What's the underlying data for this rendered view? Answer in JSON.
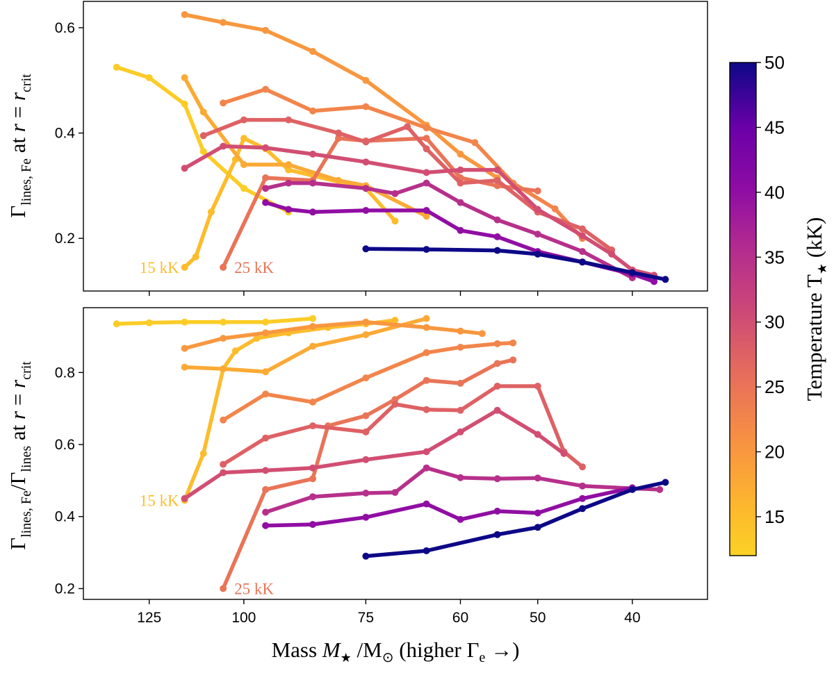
{
  "figure": {
    "x_axis_label_prefix": "Mass ",
    "x_axis_label_var": "M",
    "x_axis_label_star": "★",
    "x_axis_label_div": " /M",
    "x_axis_label_sun": "⊙",
    "x_axis_label_suffix": "  (higher Γ",
    "x_axis_label_sub": "e",
    "x_axis_label_arrow": " →)",
    "colorbar_label": "Temperature T",
    "colorbar_label_sub": "★",
    "colorbar_label_unit": " (kK)",
    "colorbar_ticks": [
      15,
      20,
      25,
      30,
      35,
      40,
      45,
      50
    ],
    "colorbar_range": [
      12,
      50
    ],
    "colorbar_label_full": "Temperature T★ (kK)"
  },
  "chart_data": [
    {
      "type": "line",
      "name": "top-panel",
      "ylabel": "Γlines, Fe at r = rcrit",
      "ylabel_main": "Γ",
      "ylabel_sub": "lines, Fe",
      "ylabel_mid": " at ",
      "ylabel_r": "r",
      "ylabel_eq": " = ",
      "ylabel_r2": "r",
      "ylabel_sub2": "crit",
      "xlim": [
        146,
        33.5
      ],
      "ylim": [
        0.1,
        0.65
      ],
      "x_ticks": [
        125,
        100,
        75,
        60,
        50,
        40
      ],
      "y_ticks": [
        0.2,
        0.4,
        0.6
      ],
      "series": [
        {
          "name": "T12.8",
          "temperature": 12.8,
          "x": [
            135,
            125,
            115,
            110,
            100,
            90
          ],
          "y": [
            0.525,
            0.505,
            0.455,
            0.365,
            0.295,
            0.25
          ]
        },
        {
          "name": "T15",
          "temperature": 15,
          "x": [
            115,
            112,
            108,
            102,
            100,
            95,
            90,
            75,
            70
          ],
          "y": [
            0.145,
            0.165,
            0.25,
            0.35,
            0.39,
            0.37,
            0.33,
            0.295,
            0.233
          ]
        },
        {
          "name": "T17.5",
          "temperature": 17.5,
          "x": [
            115,
            110,
            100,
            90,
            80,
            75,
            65
          ],
          "y": [
            0.505,
            0.44,
            0.34,
            0.34,
            0.31,
            0.3,
            0.242
          ]
        },
        {
          "name": "T20",
          "temperature": 20,
          "x": [
            115,
            105,
            95,
            85,
            75,
            65,
            60,
            55
          ],
          "y": [
            0.625,
            0.61,
            0.595,
            0.555,
            0.5,
            0.415,
            0.36,
            0.315
          ]
        },
        {
          "name": "T22.5",
          "temperature": 22.5,
          "x": [
            105,
            95,
            85,
            75,
            65,
            58,
            53,
            48,
            45
          ],
          "y": [
            0.457,
            0.483,
            0.442,
            0.45,
            0.41,
            0.382,
            0.305,
            0.256,
            0.2
          ]
        },
        {
          "name": "T25",
          "temperature": 25,
          "x": [
            105,
            95,
            85,
            80,
            75,
            65,
            60,
            55,
            50
          ],
          "y": [
            0.145,
            0.315,
            0.31,
            0.39,
            0.385,
            0.39,
            0.315,
            0.3,
            0.29
          ]
        },
        {
          "name": "T27.5",
          "temperature": 27.5,
          "x": [
            110,
            100,
            90,
            80,
            75,
            68,
            65,
            60,
            55,
            50,
            45,
            42
          ],
          "y": [
            0.395,
            0.425,
            0.425,
            0.4,
            0.383,
            0.412,
            0.37,
            0.305,
            0.31,
            0.25,
            0.218,
            0.178
          ]
        },
        {
          "name": "T30",
          "temperature": 30,
          "x": [
            115,
            105,
            95,
            85,
            75,
            65,
            60,
            55,
            50,
            45,
            42,
            40,
            38
          ],
          "y": [
            0.333,
            0.375,
            0.372,
            0.36,
            0.345,
            0.325,
            0.33,
            0.33,
            0.255,
            0.205,
            0.17,
            0.14,
            0.13
          ]
        },
        {
          "name": "T35",
          "temperature": 35,
          "x": [
            95,
            90,
            85,
            75,
            70,
            65,
            60,
            55,
            50,
            45,
            40
          ],
          "y": [
            0.295,
            0.305,
            0.305,
            0.295,
            0.285,
            0.305,
            0.268,
            0.235,
            0.208,
            0.175,
            0.125
          ]
        },
        {
          "name": "T40",
          "temperature": 40,
          "x": [
            95,
            90,
            85,
            75,
            65,
            60,
            55,
            50,
            45,
            40,
            38
          ],
          "y": [
            0.268,
            0.255,
            0.25,
            0.253,
            0.253,
            0.215,
            0.203,
            0.175,
            0.155,
            0.132,
            0.118
          ]
        },
        {
          "name": "T50",
          "temperature": 50,
          "x": [
            75,
            65,
            55,
            50,
            45,
            40,
            37
          ],
          "y": [
            0.18,
            0.179,
            0.177,
            0.17,
            0.155,
            0.135,
            0.122
          ]
        }
      ],
      "annotations": [
        {
          "text": "15 kK",
          "x": 115,
          "y": 0.145,
          "temperature": 15
        },
        {
          "text": "25 kK",
          "x": 105,
          "y": 0.145,
          "temperature": 25
        }
      ]
    },
    {
      "type": "line",
      "name": "bottom-panel",
      "ylabel": "Γlines, Fe/Γlines at r = rcrit",
      "ylabel_main": "Γ",
      "ylabel_sub": "lines, Fe",
      "ylabel_slash": "/Γ",
      "ylabel_sub_b": "lines",
      "ylabel_mid": " at ",
      "ylabel_r": "r",
      "ylabel_eq": " = ",
      "ylabel_r2": "r",
      "ylabel_sub2": "crit",
      "xlim": [
        146,
        33.5
      ],
      "ylim": [
        0.17,
        0.98
      ],
      "x_ticks": [
        125,
        100,
        75,
        60,
        50,
        40
      ],
      "y_ticks": [
        0.2,
        0.4,
        0.6,
        0.8
      ],
      "series": [
        {
          "name": "T12.8",
          "temperature": 12.8,
          "x": [
            135,
            125,
            115,
            105,
            95,
            85
          ],
          "y": [
            0.935,
            0.938,
            0.94,
            0.94,
            0.94,
            0.95
          ]
        },
        {
          "name": "T15",
          "temperature": 15,
          "x": [
            115,
            110,
            105,
            102,
            97,
            90,
            82,
            75,
            70
          ],
          "y": [
            0.445,
            0.575,
            0.81,
            0.86,
            0.895,
            0.91,
            0.925,
            0.935,
            0.945
          ]
        },
        {
          "name": "T17.5",
          "temperature": 17.5,
          "x": [
            115,
            105,
            95,
            85,
            75,
            65
          ],
          "y": [
            0.815,
            0.81,
            0.802,
            0.873,
            0.905,
            0.95
          ]
        },
        {
          "name": "T20",
          "temperature": 20,
          "x": [
            115,
            105,
            95,
            85,
            75,
            65,
            60,
            57
          ],
          "y": [
            0.867,
            0.895,
            0.91,
            0.928,
            0.94,
            0.925,
            0.915,
            0.908
          ]
        },
        {
          "name": "T22.5",
          "temperature": 22.5,
          "x": [
            105,
            95,
            85,
            75,
            65,
            60,
            55,
            53
          ],
          "y": [
            0.668,
            0.74,
            0.718,
            0.785,
            0.855,
            0.87,
            0.88,
            0.882
          ]
        },
        {
          "name": "T25",
          "temperature": 25,
          "x": [
            105,
            95,
            85,
            82,
            75,
            70,
            65,
            60,
            55,
            53
          ],
          "y": [
            0.2,
            0.475,
            0.505,
            0.652,
            0.68,
            0.725,
            0.778,
            0.77,
            0.825,
            0.835
          ]
        },
        {
          "name": "T27.5",
          "temperature": 27.5,
          "x": [
            105,
            95,
            85,
            75,
            70,
            65,
            60,
            55,
            50,
            47,
            45
          ],
          "y": [
            0.545,
            0.618,
            0.652,
            0.635,
            0.712,
            0.697,
            0.695,
            0.762,
            0.762,
            0.58,
            0.538
          ]
        },
        {
          "name": "T30",
          "temperature": 30,
          "x": [
            115,
            105,
            95,
            85,
            75,
            65,
            60,
            55,
            50,
            47
          ],
          "y": [
            0.45,
            0.522,
            0.528,
            0.535,
            0.558,
            0.58,
            0.635,
            0.695,
            0.628,
            0.575
          ]
        },
        {
          "name": "T35",
          "temperature": 35,
          "x": [
            95,
            85,
            75,
            70,
            65,
            60,
            55,
            50,
            45,
            40,
            37.5
          ],
          "y": [
            0.412,
            0.455,
            0.465,
            0.467,
            0.535,
            0.508,
            0.505,
            0.507,
            0.485,
            0.478,
            0.475
          ]
        },
        {
          "name": "T40",
          "temperature": 40,
          "x": [
            95,
            85,
            75,
            65,
            60,
            55,
            50,
            45,
            40
          ],
          "y": [
            0.375,
            0.378,
            0.398,
            0.435,
            0.392,
            0.415,
            0.41,
            0.45,
            0.48
          ]
        },
        {
          "name": "T50",
          "temperature": 50,
          "x": [
            75,
            65,
            55,
            50,
            45,
            40,
            37
          ],
          "y": [
            0.29,
            0.305,
            0.35,
            0.37,
            0.422,
            0.475,
            0.495
          ]
        }
      ],
      "annotations": [
        {
          "text": "15 kK",
          "x": 115,
          "y": 0.445,
          "temperature": 15
        },
        {
          "text": "25 kK",
          "x": 105,
          "y": 0.2,
          "temperature": 25
        }
      ]
    }
  ]
}
